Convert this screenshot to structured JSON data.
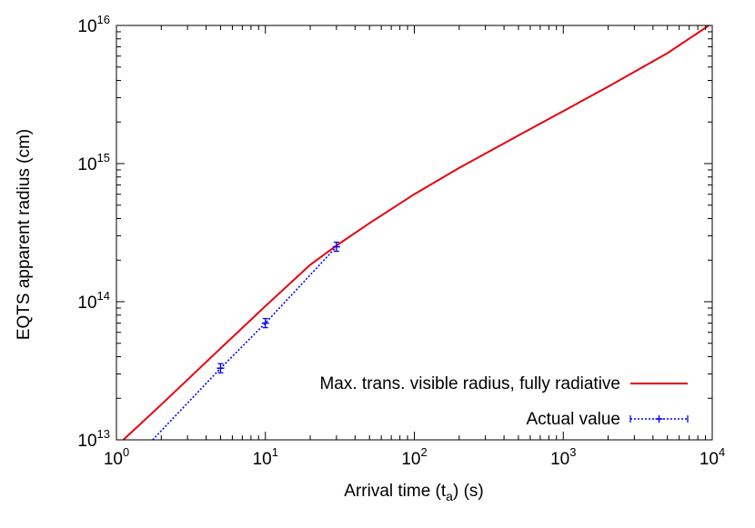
{
  "chart_data": {
    "type": "line",
    "title": "",
    "xlabel": "Arrival time (t",
    "xlabel_sub": "a",
    "xlabel_suffix": ") (s)",
    "ylabel": "EQTS apparent radius (cm)",
    "x_scale": "log",
    "y_scale": "log",
    "xlim": [
      1,
      10000
    ],
    "ylim": [
      10000000000000.0,
      1e+16
    ],
    "grid": false,
    "legend_position": "bottom-right",
    "x_ticks": [
      {
        "base": "10",
        "exp": "0",
        "value": 1
      },
      {
        "base": "10",
        "exp": "1",
        "value": 10
      },
      {
        "base": "10",
        "exp": "2",
        "value": 100
      },
      {
        "base": "10",
        "exp": "3",
        "value": 1000
      },
      {
        "base": "10",
        "exp": "4",
        "value": 10000
      }
    ],
    "y_ticks": [
      {
        "base": "10",
        "exp": "13",
        "value": 10000000000000.0
      },
      {
        "base": "10",
        "exp": "14",
        "value": 100000000000000.0
      },
      {
        "base": "10",
        "exp": "15",
        "value": 1000000000000000.0
      },
      {
        "base": "10",
        "exp": "16",
        "value": 1e+16
      }
    ],
    "series": [
      {
        "name": "Max. trans. visible radius, fully radiative",
        "color": "#e8000b",
        "style": "solid",
        "markers": false,
        "x": [
          1,
          2,
          5,
          10,
          20,
          30,
          50,
          100,
          200,
          500,
          1000,
          2000,
          5000,
          9500
        ],
        "y": [
          9000000000000.0,
          18000000000000.0,
          46000000000000.0,
          93000000000000.0,
          185000000000000.0,
          255000000000000.0,
          370000000000000.0,
          600000000000000.0,
          930000000000000.0,
          1600000000000000.0,
          2400000000000000.0,
          3600000000000000.0,
          6300000000000000.0,
          1e+16
        ]
      },
      {
        "name": "Actual value",
        "color": "#0000ff",
        "style": "dotted",
        "markers": true,
        "x": [
          1.75,
          5,
          10,
          30
        ],
        "y": [
          10000000000000.0,
          33000000000000.0,
          70000000000000.0,
          250000000000000.0
        ],
        "marker_x": [
          5,
          10,
          30
        ],
        "marker_y": [
          33000000000000.0,
          70000000000000.0,
          250000000000000.0
        ]
      }
    ]
  }
}
